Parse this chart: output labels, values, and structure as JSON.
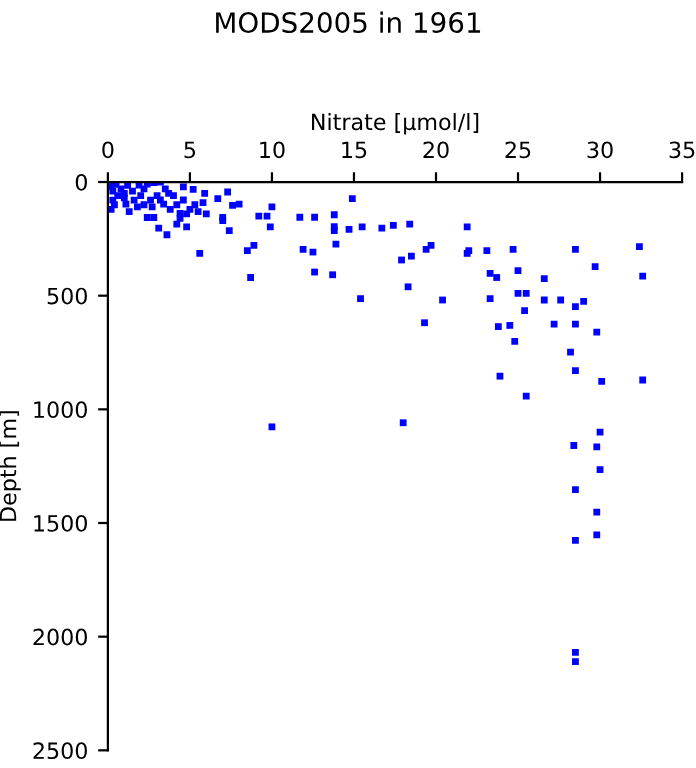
{
  "chart_data": {
    "type": "scatter",
    "title": "MODS2005 in 1961",
    "xlabel": "Nitrate [µmol/l]",
    "ylabel": "Depth [m]",
    "xlim": [
      0,
      35
    ],
    "xticks": [
      0,
      5,
      10,
      15,
      20,
      25,
      30,
      35
    ],
    "ylim": [
      2500,
      0
    ],
    "yticks": [
      0,
      500,
      1000,
      1500,
      2000,
      2500
    ],
    "grid": false,
    "marker": "square",
    "series": [
      {
        "color": "#0000ff",
        "x": [
          14.9,
          13.8,
          13.8,
          13.8,
          13.9,
          13.7,
          12.6,
          12.5,
          12.6,
          11.9,
          11.7,
          14.7,
          15.5,
          15.4,
          16.7,
          17.4,
          10.0,
          9.2,
          9.7,
          9.9,
          8.9,
          8.5,
          8.7,
          5.6,
          7.4,
          7.0,
          7.0,
          6.7,
          7.3,
          7.6,
          8.0,
          5.9,
          5.8,
          4.8,
          4.2,
          3.6,
          3.1,
          2.4,
          2.8,
          1.8,
          1.1,
          1.0,
          4.4,
          4.6,
          5.2,
          4.6,
          3.2,
          3.4,
          3.7,
          2.7,
          1.9,
          2.4,
          2.8,
          3.2,
          0.1,
          0.2,
          0.3,
          0.5,
          0.6,
          0.8,
          1.2,
          1.5,
          0.3,
          0.4,
          1.0,
          2.0,
          1.6,
          2.2,
          0.2,
          1.3,
          2.2,
          2.6,
          3.0,
          3.5,
          4.0,
          4.2,
          3.8,
          4.4,
          5.0,
          5.3,
          5.5,
          6.0,
          4.8,
          18.4,
          18.5,
          17.9,
          18.3,
          19.3,
          20.4,
          19.4,
          19.7,
          21.9,
          22.0,
          21.9,
          23.1,
          23.3,
          23.7,
          23.3,
          23.8,
          24.5,
          24.7,
          25.0,
          25.0,
          25.5,
          25.4,
          24.8,
          26.6,
          26.6,
          27.6,
          28.5,
          29.0,
          27.2,
          28.5,
          29.8,
          28.2,
          28.5,
          29.7,
          32.4,
          32.6,
          28.5,
          30.1,
          32.6,
          23.9,
          25.5,
          18.0,
          30.0,
          28.4,
          29.8,
          30.0,
          28.5,
          29.8,
          29.8,
          28.5,
          10.0,
          28.5,
          28.5
        ],
        "values": [
          73,
          144,
          196,
          214,
          273,
          408,
          155,
          308,
          396,
          296,
          155,
          208,
          197,
          513,
          203,
          191,
          109,
          150,
          150,
          197,
          279,
          302,
          420,
          314,
          214,
          156,
          170,
          73,
          44,
          103,
          97,
          50,
          91,
          197,
          185,
          232,
          203,
          156,
          156,
          109,
          97,
          50,
          138,
          79,
          32,
          21,
          79,
          97,
          50,
          109,
          14,
          9,
          3,
          0,
          5,
          20,
          40,
          10,
          60,
          30,
          15,
          40,
          80,
          100,
          70,
          60,
          80,
          30,
          120,
          130,
          100,
          80,
          60,
          30,
          60,
          100,
          120,
          160,
          120,
          100,
          130,
          140,
          140,
          185,
          326,
          343,
          461,
          619,
          519,
          296,
          279,
          314,
          302,
          197,
          302,
          402,
          420,
          513,
          636,
          631,
          296,
          390,
          490,
          490,
          566,
          701,
          425,
          519,
          519,
          548,
          525,
          625,
          625,
          660,
          748,
          296,
          372,
          284,
          414,
          830,
          877,
          871,
          854,
          942,
          1059,
          1100,
          1159,
          1165,
          1265,
          1353,
          1452,
          1552,
          1576,
          1077,
          2069,
          2110
        ]
      }
    ]
  }
}
